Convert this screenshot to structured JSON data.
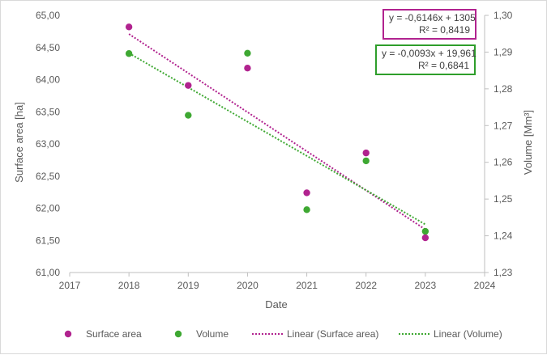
{
  "chart_data": {
    "type": "scatter",
    "xlabel": "Date",
    "ylabel_left": "Surface area [ha]",
    "ylabel_right": "Volume [Mm³]",
    "xlim": [
      2017,
      2024
    ],
    "x_ticks": [
      "2017",
      "2018",
      "2019",
      "2020",
      "2021",
      "2022",
      "2023",
      "2024"
    ],
    "ylim_left": [
      61.0,
      65.0
    ],
    "y_left_ticks": [
      "61,00",
      "61,50",
      "62,00",
      "62,50",
      "63,00",
      "63,50",
      "64,00",
      "64,50",
      "65,00"
    ],
    "ylim_right": [
      1.23,
      1.3
    ],
    "y_right_ticks": [
      "1,23",
      "1,24",
      "1,25",
      "1,26",
      "1,27",
      "1,28",
      "1,29",
      "1,30"
    ],
    "grid": false,
    "legend_position": "bottom",
    "series": [
      {
        "name": "Surface area",
        "axis": "left",
        "color": "#b1238f",
        "x": [
          2018,
          2019,
          2020,
          2021,
          2022,
          2023
        ],
        "y": [
          64.82,
          63.91,
          64.18,
          62.24,
          62.86,
          61.54
        ]
      },
      {
        "name": "Volume",
        "axis": "right",
        "color": "#3ea832",
        "x": [
          2018,
          2019,
          2020,
          2021,
          2022,
          2023
        ],
        "y": [
          1.2896,
          1.2728,
          1.2897,
          1.2471,
          1.2604,
          1.2412
        ]
      }
    ],
    "trendlines": [
      {
        "name": "Linear (Surface area)",
        "axis": "left",
        "color": "#b1238f",
        "x": [
          2018,
          2023
        ],
        "y": [
          64.71,
          61.67
        ],
        "equation": "y = -0,6146x + 1305",
        "r2": "R² = 0,8419"
      },
      {
        "name": "Linear (Volume)",
        "axis": "right",
        "color": "#3ea832",
        "x": [
          2018,
          2023
        ],
        "y": [
          1.2897,
          1.2431
        ],
        "equation": "y = -0,0093x + 19,961",
        "r2": "R² = 0,6841"
      }
    ]
  }
}
